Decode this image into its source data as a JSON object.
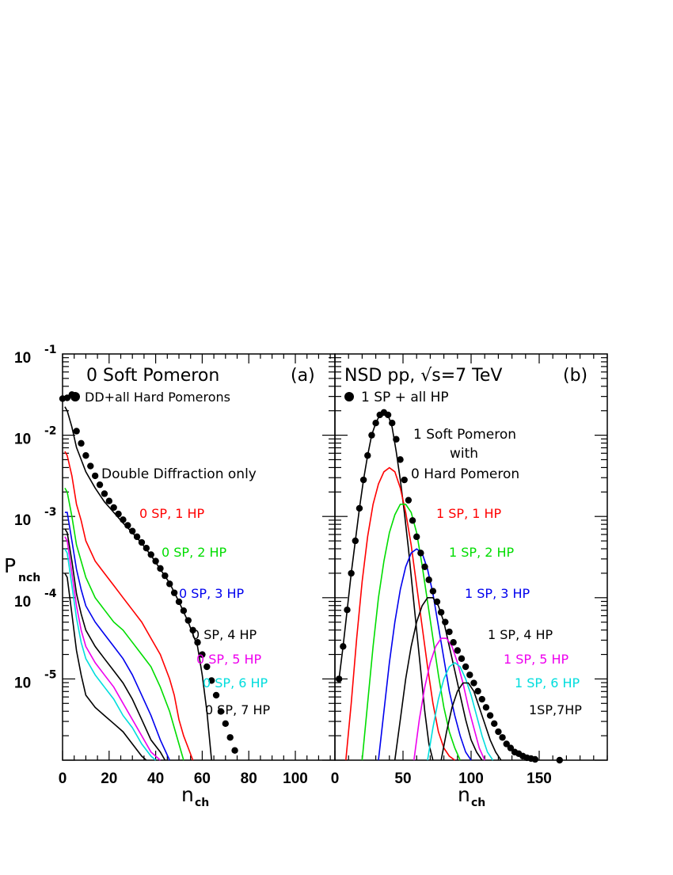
{
  "chart_data": [
    {
      "type": "line",
      "panel": "(a)",
      "title": "0 Soft Pomeron",
      "legend_marker_label": "DD+all Hard Pomerons",
      "note": "Double Diffraction only",
      "xlabel": "n",
      "xlabel_sub": "ch",
      "ylabel": "P",
      "ylabel_sub": "nch",
      "xlim": [
        0,
        117
      ],
      "ylim_log10": [
        -6.0,
        -1.0
      ],
      "y_scale": "log",
      "x_tick_labels": [
        "0",
        "20",
        "40",
        "60",
        "80",
        "100"
      ],
      "y_tick_labels": [
        {
          "base": "10",
          "exp": "-1"
        },
        {
          "base": "10",
          "exp": "-2"
        },
        {
          "base": "10",
          "exp": "-3"
        },
        {
          "base": "10",
          "exp": "-4"
        },
        {
          "base": "10",
          "exp": "-5"
        }
      ],
      "series": [
        {
          "name": "DD+all Hard Pomerons",
          "style": "points",
          "color": "#000000",
          "x": [
            0,
            2,
            4,
            6,
            8,
            10,
            12,
            14,
            16,
            18,
            20,
            22,
            24,
            26,
            28,
            30,
            32,
            34,
            36,
            38,
            40,
            42,
            44,
            46,
            48,
            50,
            52,
            54,
            56,
            58,
            60,
            62,
            64,
            66,
            68,
            70,
            72,
            74
          ],
          "log10_y": [
            -1.55,
            -1.54,
            -1.5,
            -1.95,
            -2.1,
            -2.25,
            -2.38,
            -2.5,
            -2.61,
            -2.72,
            -2.81,
            -2.89,
            -2.97,
            -3.04,
            -3.11,
            -3.18,
            -3.25,
            -3.32,
            -3.39,
            -3.47,
            -3.55,
            -3.64,
            -3.73,
            -3.83,
            -3.94,
            -4.05,
            -4.16,
            -4.28,
            -4.4,
            -4.55,
            -4.7,
            -4.85,
            -5.02,
            -5.2,
            -5.4,
            -5.55,
            -5.72,
            -5.88
          ]
        },
        {
          "name": "Double Diffraction only",
          "style": "line",
          "color": "#000000",
          "x": [
            1,
            2,
            4,
            6,
            8,
            10,
            14,
            18,
            22,
            26,
            30,
            34,
            38,
            42,
            46,
            50,
            54,
            58,
            60,
            62,
            64
          ],
          "log10_y": [
            -1.65,
            -1.7,
            -1.9,
            -2.15,
            -2.3,
            -2.45,
            -2.65,
            -2.82,
            -2.95,
            -3.08,
            -3.2,
            -3.33,
            -3.48,
            -3.65,
            -3.82,
            -4.05,
            -4.3,
            -4.6,
            -4.95,
            -5.4,
            -6.0
          ]
        },
        {
          "name": "0 SP, 1 HP",
          "style": "line",
          "color": "#ff0000",
          "x": [
            1,
            2,
            4,
            6,
            8,
            10,
            14,
            18,
            22,
            26,
            30,
            34,
            38,
            42,
            46,
            48,
            50,
            52,
            54,
            56
          ],
          "log10_y": [
            -2.2,
            -2.25,
            -2.5,
            -2.85,
            -3.05,
            -3.3,
            -3.55,
            -3.7,
            -3.85,
            -4.0,
            -4.15,
            -4.3,
            -4.5,
            -4.7,
            -5.0,
            -5.2,
            -5.5,
            -5.7,
            -5.85,
            -6.0
          ]
        },
        {
          "name": "0 SP, 2 HP",
          "style": "line",
          "color": "#00dd00",
          "x": [
            1,
            2,
            4,
            6,
            8,
            10,
            14,
            18,
            22,
            26,
            30,
            34,
            38,
            42,
            46,
            48,
            50,
            52
          ],
          "log10_y": [
            -2.65,
            -2.7,
            -3.0,
            -3.35,
            -3.55,
            -3.75,
            -4.0,
            -4.15,
            -4.3,
            -4.4,
            -4.55,
            -4.7,
            -4.85,
            -5.1,
            -5.4,
            -5.6,
            -5.8,
            -6.0
          ]
        },
        {
          "name": "0 SP, 3 HP",
          "style": "line",
          "color": "#0000ee",
          "x": [
            1,
            2,
            4,
            6,
            8,
            10,
            14,
            18,
            22,
            26,
            30,
            34,
            38,
            42,
            46
          ],
          "log10_y": [
            -2.95,
            -2.95,
            -3.3,
            -3.65,
            -3.9,
            -4.1,
            -4.3,
            -4.45,
            -4.6,
            -4.75,
            -4.95,
            -5.2,
            -5.45,
            -5.75,
            -6.0
          ]
        },
        {
          "name": "0 SP, 4 HP",
          "style": "line",
          "color": "#000000",
          "x": [
            1,
            2,
            4,
            6,
            8,
            10,
            14,
            18,
            22,
            26,
            30,
            34,
            38,
            42,
            44
          ],
          "log10_y": [
            -3.15,
            -3.2,
            -3.55,
            -3.95,
            -4.2,
            -4.4,
            -4.6,
            -4.75,
            -4.9,
            -5.05,
            -5.25,
            -5.5,
            -5.75,
            -5.9,
            -6.0
          ]
        },
        {
          "name": "0 SP, 5 HP",
          "style": "line",
          "color": "#ee00ee",
          "x": [
            1,
            2,
            4,
            6,
            8,
            10,
            14,
            18,
            22,
            26,
            30,
            34,
            38,
            42
          ],
          "log10_y": [
            -3.25,
            -3.3,
            -3.7,
            -4.1,
            -4.4,
            -4.6,
            -4.8,
            -4.95,
            -5.1,
            -5.3,
            -5.5,
            -5.7,
            -5.9,
            -6.0
          ]
        },
        {
          "name": "0 SP, 6 HP",
          "style": "line",
          "color": "#00dddd",
          "x": [
            1,
            2,
            4,
            6,
            8,
            10,
            14,
            18,
            22,
            26,
            30,
            34,
            38,
            40
          ],
          "log10_y": [
            -3.4,
            -3.45,
            -3.85,
            -4.25,
            -4.55,
            -4.75,
            -4.95,
            -5.1,
            -5.25,
            -5.45,
            -5.6,
            -5.8,
            -5.95,
            -6.0
          ]
        },
        {
          "name": "0 SP, 7 HP",
          "style": "line",
          "color": "#000000",
          "x": [
            1,
            2,
            4,
            6,
            8,
            10,
            14,
            18,
            22,
            26,
            30,
            34,
            36
          ],
          "log10_y": [
            -3.7,
            -3.75,
            -4.2,
            -4.65,
            -4.95,
            -5.2,
            -5.35,
            -5.45,
            -5.55,
            -5.65,
            -5.8,
            -5.95,
            -6.0
          ]
        }
      ],
      "series_labels": [
        {
          "text": "0 SP, 1 HP",
          "color": "#ff0000"
        },
        {
          "text": "0 SP, 2 HP",
          "color": "#00dd00"
        },
        {
          "text": "0 SP, 3 HP",
          "color": "#0000ee"
        },
        {
          "text": "0 SP, 4 HP",
          "color": "#000000"
        },
        {
          "text": "0 SP, 5 HP",
          "color": "#ee00ee"
        },
        {
          "text": "0 SP, 6 HP",
          "color": "#00dddd"
        },
        {
          "text": "0 SP, 7 HP",
          "color": "#000000"
        }
      ]
    },
    {
      "type": "line",
      "panel": "(b)",
      "title": "NSD pp, √s=7 TeV",
      "legend_marker_label": "1 SP + all HP",
      "note_lines": [
        "1 Soft Pomeron",
        "with",
        "0 Hard Pomeron"
      ],
      "xlabel": "n",
      "xlabel_sub": "ch",
      "xlim": [
        0,
        200
      ],
      "ylim_log10": [
        -6.0,
        -1.0
      ],
      "y_scale": "log",
      "x_tick_labels": [
        "0",
        "50",
        "100",
        "150"
      ],
      "series": [
        {
          "name": "1 SP + all HP",
          "style": "points",
          "color": "#000000",
          "x": [
            3,
            6,
            9,
            12,
            15,
            18,
            21,
            24,
            27,
            30,
            33,
            36,
            39,
            42,
            45,
            48,
            51,
            54,
            57,
            60,
            63,
            66,
            69,
            72,
            75,
            78,
            81,
            84,
            87,
            90,
            93,
            96,
            99,
            102,
            105,
            108,
            111,
            114,
            117,
            120,
            123,
            126,
            129,
            132,
            135,
            138,
            141,
            144,
            147,
            165
          ],
          "log10_y": [
            -5.0,
            -4.6,
            -4.15,
            -3.7,
            -3.3,
            -2.9,
            -2.55,
            -2.25,
            -2.0,
            -1.85,
            -1.75,
            -1.72,
            -1.75,
            -1.85,
            -2.05,
            -2.3,
            -2.55,
            -2.8,
            -3.05,
            -3.25,
            -3.45,
            -3.62,
            -3.78,
            -3.92,
            -4.05,
            -4.18,
            -4.3,
            -4.42,
            -4.55,
            -4.65,
            -4.75,
            -4.85,
            -4.95,
            -5.05,
            -5.15,
            -5.25,
            -5.35,
            -5.45,
            -5.55,
            -5.65,
            -5.72,
            -5.8,
            -5.85,
            -5.9,
            -5.92,
            -5.95,
            -5.97,
            -5.98,
            -5.99,
            -6.0
          ]
        },
        {
          "name": "1 Soft Pomeron with 0 Hard Pomeron",
          "style": "line",
          "color": "#000000",
          "x": [
            3,
            6,
            9,
            12,
            15,
            18,
            21,
            24,
            27,
            30,
            33,
            36,
            39,
            42,
            45,
            48,
            51,
            54,
            57,
            60,
            63,
            66,
            69,
            72
          ],
          "log10_y": [
            -5.0,
            -4.6,
            -4.15,
            -3.7,
            -3.3,
            -2.9,
            -2.55,
            -2.25,
            -2.0,
            -1.85,
            -1.75,
            -1.72,
            -1.75,
            -1.9,
            -2.2,
            -2.55,
            -2.95,
            -3.4,
            -3.9,
            -4.4,
            -4.9,
            -5.4,
            -5.8,
            -6.0
          ]
        },
        {
          "name": "1 SP, 1 HP",
          "style": "line",
          "color": "#ff0000",
          "x": [
            8,
            12,
            16,
            20,
            24,
            28,
            32,
            36,
            40,
            44,
            48,
            52,
            56,
            60,
            64,
            68,
            72,
            76,
            80,
            84,
            88
          ],
          "log10_y": [
            -6.0,
            -5.3,
            -4.5,
            -3.8,
            -3.25,
            -2.85,
            -2.6,
            -2.45,
            -2.4,
            -2.45,
            -2.65,
            -2.95,
            -3.35,
            -3.85,
            -4.35,
            -4.85,
            -5.3,
            -5.65,
            -5.85,
            -5.95,
            -6.0
          ]
        },
        {
          "name": "1 SP, 2 HP",
          "style": "line",
          "color": "#00dd00",
          "x": [
            20,
            24,
            28,
            32,
            36,
            40,
            44,
            48,
            52,
            56,
            60,
            64,
            68,
            72,
            76,
            80,
            84,
            88,
            92
          ],
          "log10_y": [
            -6.0,
            -5.3,
            -4.6,
            -4.0,
            -3.55,
            -3.2,
            -2.98,
            -2.85,
            -2.85,
            -2.95,
            -3.2,
            -3.6,
            -4.05,
            -4.5,
            -4.95,
            -5.35,
            -5.65,
            -5.85,
            -6.0
          ]
        },
        {
          "name": "1 SP, 3 HP",
          "style": "line",
          "color": "#0000ee",
          "x": [
            32,
            36,
            40,
            44,
            48,
            52,
            56,
            60,
            64,
            68,
            72,
            76,
            80,
            84,
            88,
            92,
            96,
            100
          ],
          "log10_y": [
            -6.0,
            -5.4,
            -4.8,
            -4.3,
            -3.9,
            -3.62,
            -3.45,
            -3.4,
            -3.45,
            -3.65,
            -3.95,
            -4.35,
            -4.75,
            -5.15,
            -5.45,
            -5.7,
            -5.9,
            -6.0
          ]
        },
        {
          "name": "1 SP, 4 HP",
          "style": "line",
          "color": "#000000",
          "x": [
            44,
            48,
            52,
            56,
            60,
            64,
            68,
            72,
            76,
            80,
            84,
            88,
            92,
            96,
            100,
            104,
            108
          ],
          "log10_y": [
            -6.0,
            -5.5,
            -5.0,
            -4.6,
            -4.3,
            -4.1,
            -4.0,
            -4.0,
            -4.1,
            -4.3,
            -4.6,
            -4.9,
            -5.2,
            -5.5,
            -5.75,
            -5.9,
            -6.0
          ]
        },
        {
          "name": "1 SP, 5 HP",
          "style": "line",
          "color": "#ee00ee",
          "x": [
            58,
            62,
            66,
            70,
            74,
            78,
            82,
            86,
            90,
            94,
            98,
            102,
            106,
            110
          ],
          "log10_y": [
            -6.0,
            -5.5,
            -5.1,
            -4.8,
            -4.6,
            -4.5,
            -4.5,
            -4.6,
            -4.8,
            -5.05,
            -5.35,
            -5.6,
            -5.85,
            -6.0
          ]
        },
        {
          "name": "1 SP, 6 HP",
          "style": "line",
          "color": "#00dddd",
          "x": [
            68,
            72,
            76,
            80,
            84,
            88,
            92,
            96,
            100,
            104,
            108,
            112,
            116
          ],
          "log10_y": [
            -6.0,
            -5.6,
            -5.25,
            -5.0,
            -4.85,
            -4.8,
            -4.85,
            -5.0,
            -5.2,
            -5.45,
            -5.7,
            -5.9,
            -6.0
          ]
        },
        {
          "name": "1SP,7HP",
          "style": "line",
          "color": "#000000",
          "x": [
            78,
            82,
            86,
            90,
            94,
            98,
            102,
            106,
            110,
            114,
            118,
            122
          ],
          "log10_y": [
            -6.0,
            -5.65,
            -5.35,
            -5.15,
            -5.05,
            -5.05,
            -5.15,
            -5.35,
            -5.55,
            -5.75,
            -5.9,
            -6.0
          ]
        }
      ],
      "series_labels": [
        {
          "text": "1 SP, 1 HP",
          "color": "#ff0000"
        },
        {
          "text": "1 SP, 2 HP",
          "color": "#00dd00"
        },
        {
          "text": "1 SP, 3 HP",
          "color": "#0000ee"
        },
        {
          "text": "1 SP, 4 HP",
          "color": "#000000"
        },
        {
          "text": "1 SP, 5 HP",
          "color": "#ee00ee"
        },
        {
          "text": "1 SP, 6 HP",
          "color": "#00dddd"
        },
        {
          "text": "1SP,7HP",
          "color": "#000000"
        }
      ]
    }
  ]
}
